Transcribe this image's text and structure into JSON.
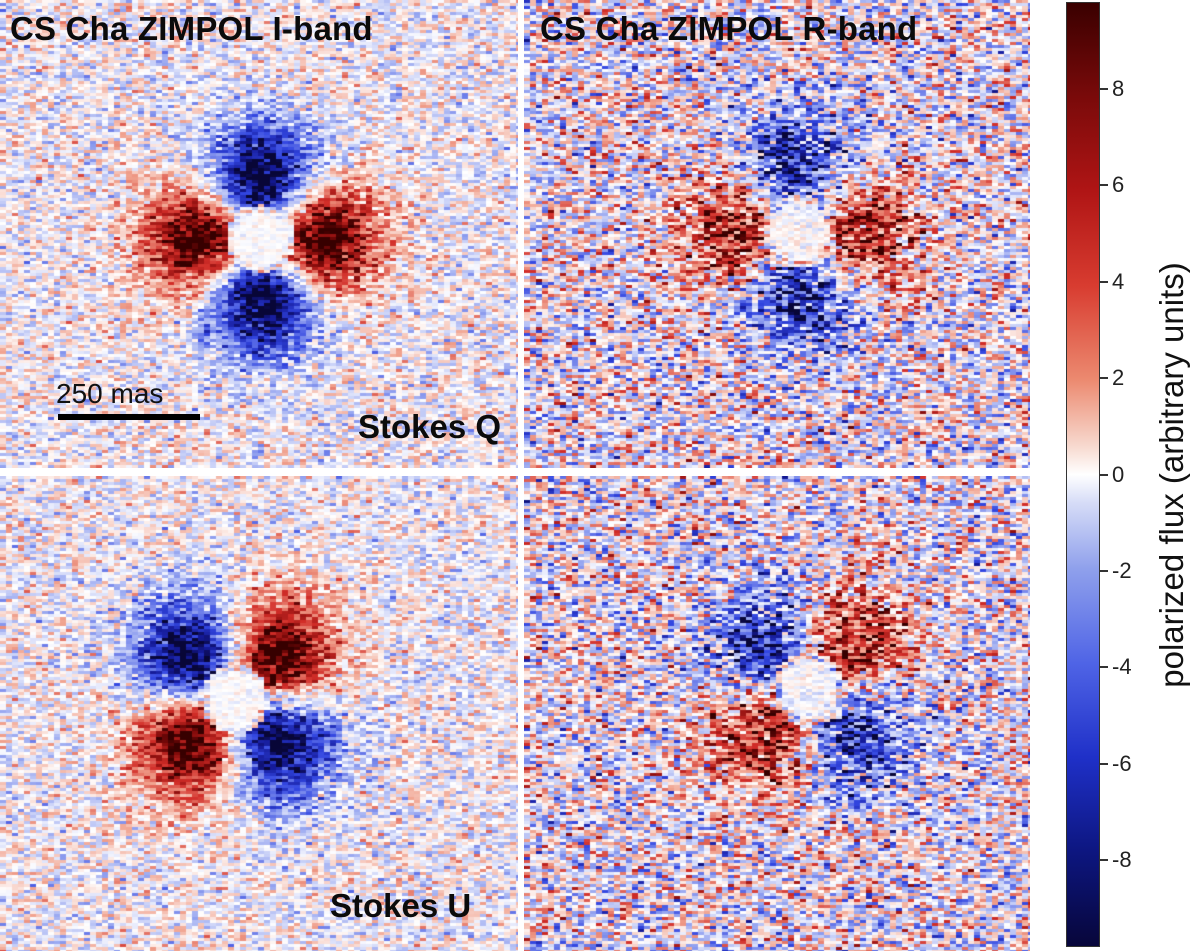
{
  "titles": {
    "left": "CS Cha ZIMPOL I-band",
    "right": "CS Cha ZIMPOL R-band"
  },
  "row_labels": {
    "top": "Stokes Q",
    "bottom": "Stokes U"
  },
  "scale_bar": {
    "label": "250 mas"
  },
  "colorbar": {
    "label": "polarized flux (arbitrary units)",
    "ticks": [
      "8",
      "6",
      "4",
      "2",
      "0",
      "-2",
      "-4",
      "-6",
      "-8"
    ],
    "range": [
      -9.8,
      9.8
    ],
    "colormap": "seismic",
    "colors": {
      "high": "#3a0000",
      "mid": "#ffffff",
      "low": "#07063a"
    }
  }
}
